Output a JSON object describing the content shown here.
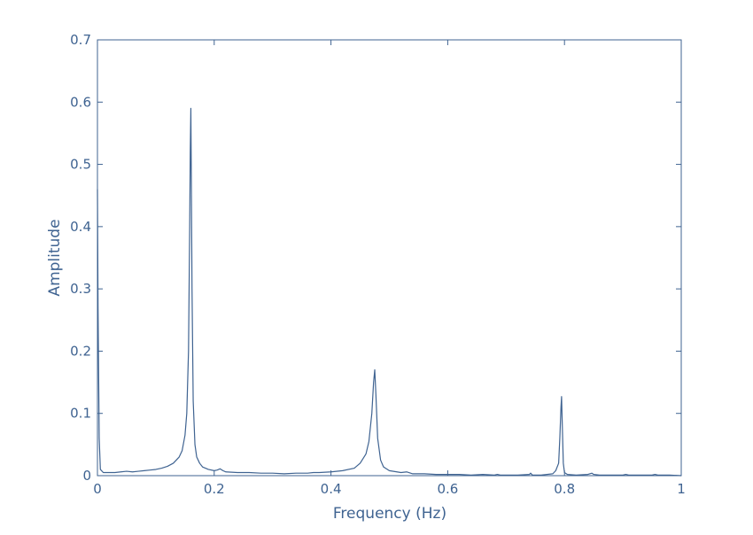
{
  "chart_data": {
    "type": "line",
    "title": "",
    "xlabel": "Frequency (Hz)",
    "ylabel": "Amplitude",
    "xlim": [
      0,
      1
    ],
    "ylim": [
      0,
      0.7
    ],
    "xticks": [
      0,
      0.2,
      0.4,
      0.6,
      0.8,
      1
    ],
    "xtick_labels": [
      "0",
      "0.2",
      "0.4",
      "0.6",
      "0.8",
      "1"
    ],
    "yticks": [
      0,
      0.1,
      0.2,
      0.3,
      0.4,
      0.5,
      0.6,
      0.7
    ],
    "ytick_labels": [
      "0",
      "0.1",
      "0.2",
      "0.3",
      "0.4",
      "0.5",
      "0.6",
      "0.7"
    ],
    "grid": false,
    "colors": {
      "line": "#3f6391",
      "axis": "#3f6391"
    },
    "series": [
      {
        "x": [
          0,
          0.001,
          0.003,
          0.005,
          0.01,
          0.02,
          0.03,
          0.04,
          0.05,
          0.06,
          0.07,
          0.08,
          0.09,
          0.1,
          0.11,
          0.12,
          0.13,
          0.14,
          0.145,
          0.15,
          0.153,
          0.156,
          0.158,
          0.159,
          0.16,
          0.161,
          0.162,
          0.164,
          0.167,
          0.17,
          0.175,
          0.18,
          0.19,
          0.2,
          0.205,
          0.21,
          0.215,
          0.22,
          0.24,
          0.26,
          0.28,
          0.3,
          0.32,
          0.34,
          0.36,
          0.37,
          0.38,
          0.4,
          0.42,
          0.44,
          0.45,
          0.46,
          0.465,
          0.47,
          0.473,
          0.475,
          0.477,
          0.48,
          0.485,
          0.49,
          0.5,
          0.52,
          0.53,
          0.54,
          0.56,
          0.58,
          0.6,
          0.62,
          0.64,
          0.66,
          0.68,
          0.685,
          0.69,
          0.72,
          0.74,
          0.742,
          0.745,
          0.76,
          0.78,
          0.785,
          0.79,
          0.792,
          0.794,
          0.795,
          0.796,
          0.798,
          0.8,
          0.805,
          0.82,
          0.84,
          0.847,
          0.85,
          0.86,
          0.88,
          0.9,
          0.905,
          0.91,
          0.93,
          0.95,
          0.955,
          0.96,
          0.98,
          1.0
        ],
        "y": [
          0.46,
          0.27,
          0.06,
          0.01,
          0.005,
          0.005,
          0.005,
          0.006,
          0.007,
          0.006,
          0.007,
          0.008,
          0.009,
          0.01,
          0.012,
          0.015,
          0.02,
          0.03,
          0.04,
          0.065,
          0.1,
          0.2,
          0.4,
          0.52,
          0.59,
          0.45,
          0.3,
          0.12,
          0.05,
          0.03,
          0.02,
          0.014,
          0.01,
          0.008,
          0.009,
          0.011,
          0.008,
          0.006,
          0.005,
          0.005,
          0.004,
          0.004,
          0.003,
          0.004,
          0.004,
          0.005,
          0.005,
          0.006,
          0.008,
          0.012,
          0.02,
          0.035,
          0.055,
          0.1,
          0.15,
          0.17,
          0.13,
          0.06,
          0.025,
          0.014,
          0.008,
          0.005,
          0.006,
          0.003,
          0.003,
          0.002,
          0.002,
          0.002,
          0.001,
          0.002,
          0.001,
          0.002,
          0.001,
          0.001,
          0.002,
          0.004,
          0.001,
          0.001,
          0.003,
          0.008,
          0.02,
          0.06,
          0.11,
          0.127,
          0.09,
          0.02,
          0.005,
          0.002,
          0.001,
          0.002,
          0.004,
          0.002,
          0.001,
          0.001,
          0.001,
          0.002,
          0.001,
          0.001,
          0.001,
          0.002,
          0.001,
          0.001,
          0.0
        ]
      }
    ]
  }
}
